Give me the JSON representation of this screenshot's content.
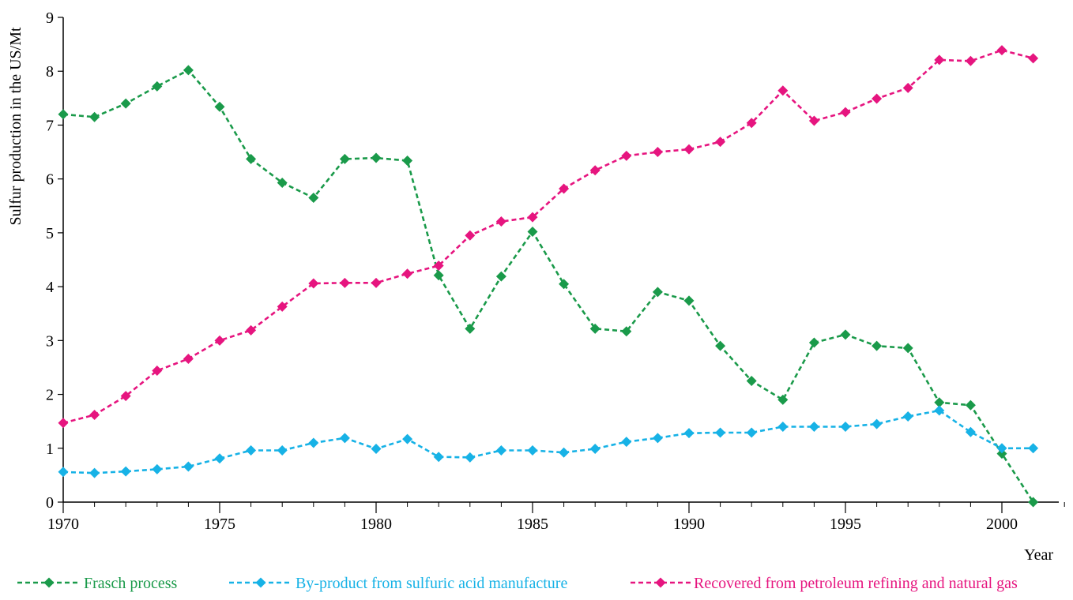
{
  "chart_data": {
    "type": "line",
    "title": "",
    "xlabel": "Year",
    "ylabel": "Sulfur production in the US/Mt",
    "xlim": [
      1970,
      2002
    ],
    "ylim": [
      0,
      9
    ],
    "x_ticks": [
      1970,
      1975,
      1980,
      1985,
      1990,
      1995,
      2000
    ],
    "y_ticks": [
      0,
      1,
      2,
      3,
      4,
      5,
      6,
      7,
      8,
      9
    ],
    "grid": false,
    "legend_position": "bottom",
    "x": [
      1970,
      1971,
      1972,
      1973,
      1974,
      1975,
      1976,
      1977,
      1978,
      1979,
      1980,
      1981,
      1982,
      1983,
      1984,
      1985,
      1986,
      1987,
      1988,
      1989,
      1990,
      1991,
      1992,
      1993,
      1994,
      1995,
      1996,
      1997,
      1998,
      1999,
      2000,
      2001
    ],
    "series": [
      {
        "name": "Frasch process",
        "color": "#1a9a4a",
        "values": [
          7.2,
          7.15,
          7.4,
          7.72,
          8.02,
          7.34,
          6.37,
          5.93,
          5.65,
          6.37,
          6.39,
          6.34,
          4.21,
          3.22,
          4.19,
          5.02,
          4.05,
          3.22,
          3.17,
          3.9,
          3.74,
          2.9,
          2.25,
          1.9,
          2.96,
          3.11,
          2.9,
          2.86,
          1.85,
          1.8,
          0.9,
          0.0
        ]
      },
      {
        "name": "By-product from sulfuric acid manufacture",
        "color": "#17b2e6",
        "values": [
          0.56,
          0.54,
          0.57,
          0.61,
          0.66,
          0.81,
          0.96,
          0.96,
          1.1,
          1.19,
          0.99,
          1.17,
          0.84,
          0.83,
          0.96,
          0.96,
          0.92,
          0.99,
          1.12,
          1.19,
          1.28,
          1.29,
          1.29,
          1.4,
          1.4,
          1.4,
          1.45,
          1.59,
          1.7,
          1.3,
          1.0,
          1.0
        ]
      },
      {
        "name": "Recovered from petroleum refining and natural gas",
        "color": "#e6157f",
        "values": [
          1.47,
          1.62,
          1.97,
          2.44,
          2.66,
          3.0,
          3.19,
          3.63,
          4.06,
          4.07,
          4.07,
          4.24,
          4.39,
          4.95,
          5.21,
          5.29,
          5.82,
          6.16,
          6.43,
          6.5,
          6.55,
          6.69,
          7.04,
          7.64,
          7.08,
          7.24,
          7.49,
          7.69,
          8.21,
          8.19,
          8.39,
          8.24
        ]
      }
    ]
  }
}
